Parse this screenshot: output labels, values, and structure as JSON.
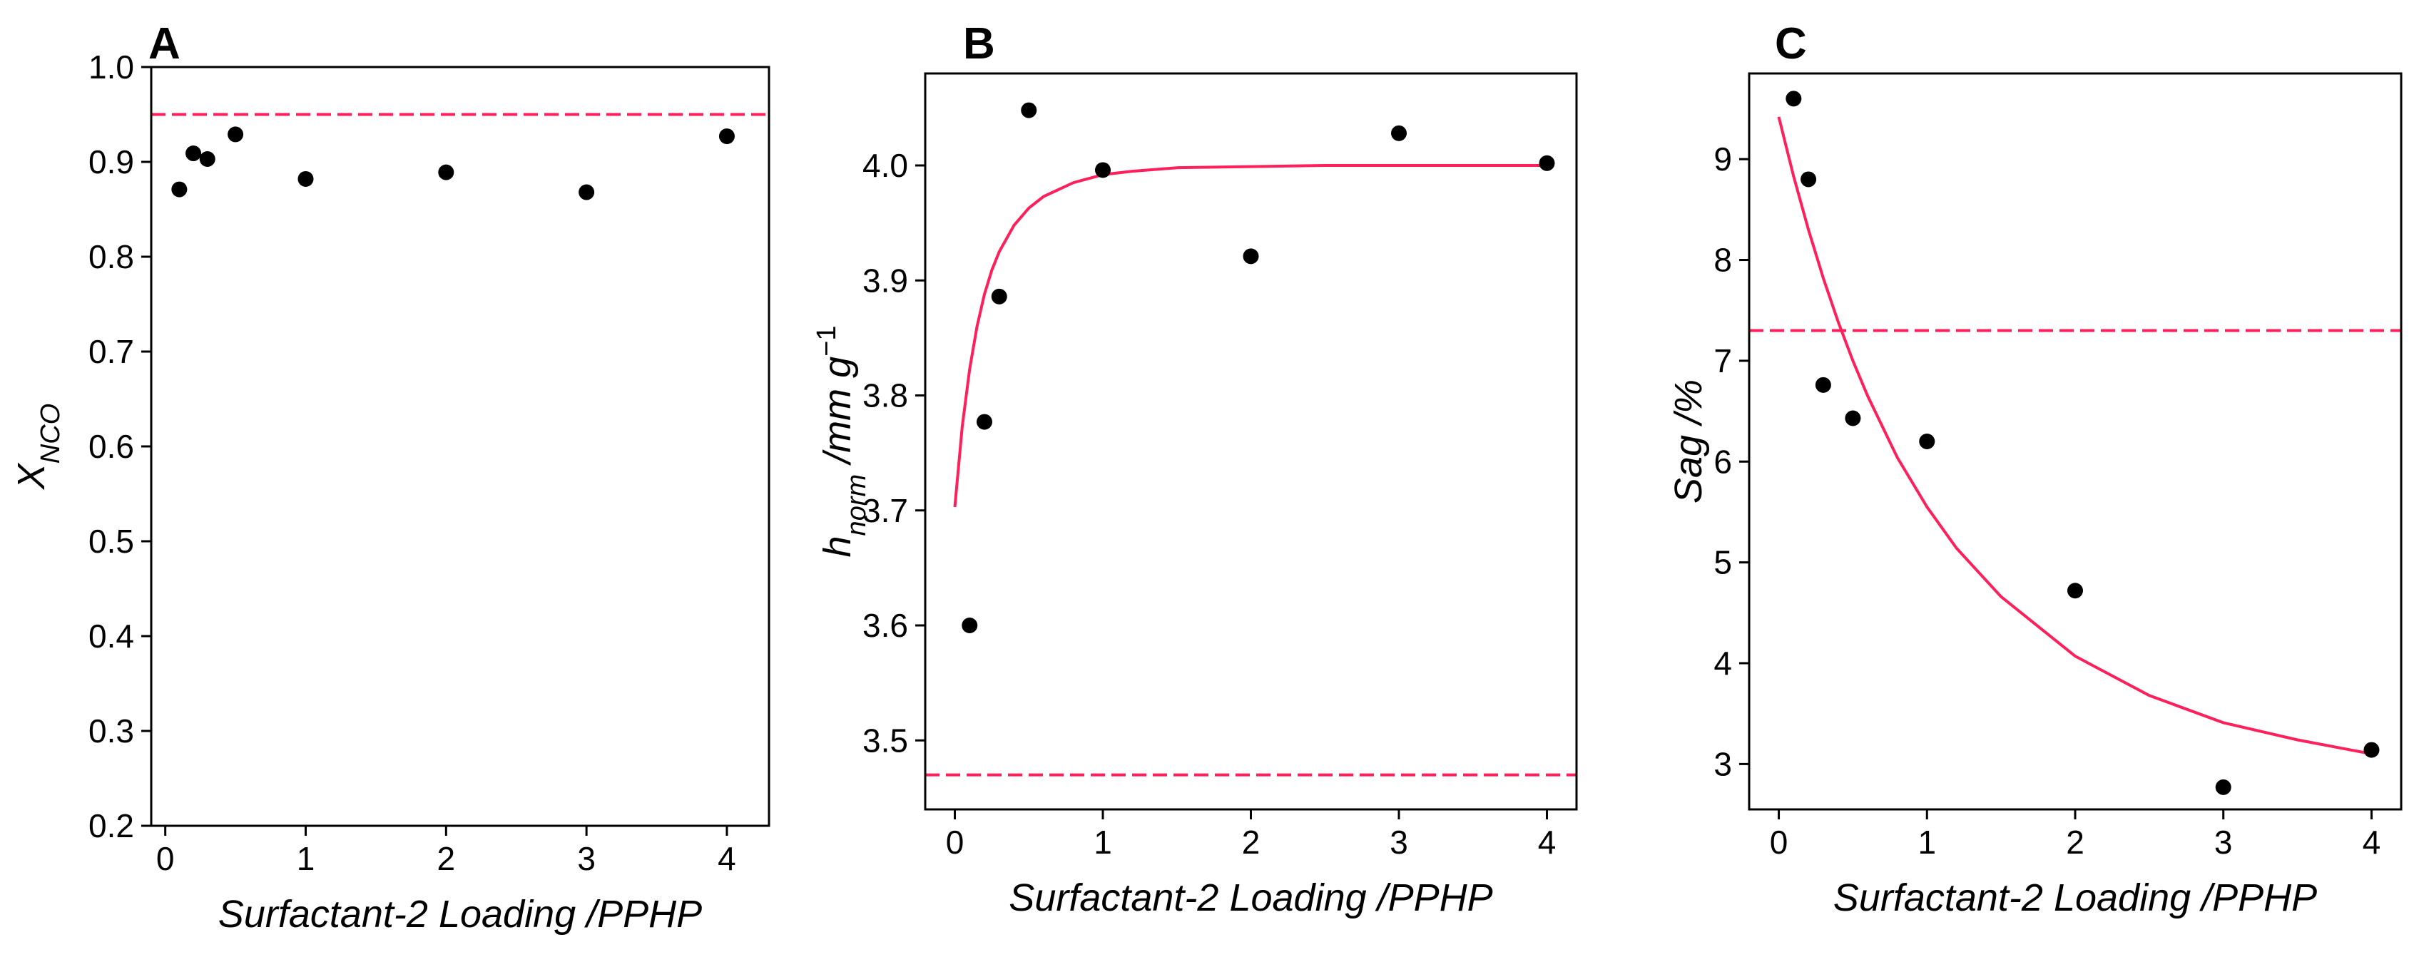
{
  "chart_data": [
    {
      "type": "scatter",
      "panel_label": "A",
      "xlabel": "Surfactant-2 Loading /PPHP",
      "ylabel_main": "X",
      "ylabel_sub": "NCO",
      "xlim": [
        -0.1,
        4.3
      ],
      "ylim": [
        0.2,
        1.0
      ],
      "xticks": [
        0,
        1,
        2,
        3,
        4
      ],
      "yticks": [
        0.2,
        0.3,
        0.4,
        0.5,
        0.6,
        0.7,
        0.8,
        0.9,
        1.0
      ],
      "ytick_labels": [
        "0.2",
        "0.3",
        "0.4",
        "0.5",
        "0.6",
        "0.7",
        "0.8",
        "0.9",
        "1.0"
      ],
      "series": [
        {
          "name": "data",
          "kind": "points",
          "color": "#000000",
          "x": [
            0.1,
            0.2,
            0.3,
            0.5,
            1,
            2,
            3,
            4
          ],
          "y": [
            0.871,
            0.909,
            0.903,
            0.929,
            0.882,
            0.889,
            0.868,
            0.927
          ]
        },
        {
          "name": "reference",
          "kind": "hline",
          "color": "#ff1f5b",
          "y": 0.95
        }
      ]
    },
    {
      "type": "scatter",
      "panel_label": "B",
      "xlabel": "Surfactant-2 Loading /PPHP",
      "ylabel_main": "h",
      "ylabel_sub": "norm",
      "ylabel_rest": " /mm g",
      "ylabel_sup": "−1",
      "xlim": [
        -0.2,
        4.2
      ],
      "ylim": [
        3.44,
        4.08
      ],
      "xticks": [
        0,
        1,
        2,
        3,
        4
      ],
      "yticks": [
        3.5,
        3.6,
        3.7,
        3.8,
        3.9,
        4.0
      ],
      "ytick_labels": [
        "3.5",
        "3.6",
        "3.7",
        "3.8",
        "3.9",
        "4.0"
      ],
      "series": [
        {
          "name": "data",
          "kind": "points",
          "color": "#000000",
          "x": [
            0.1,
            0.2,
            0.3,
            0.5,
            1,
            2,
            3,
            4
          ],
          "y": [
            3.6,
            3.777,
            3.886,
            4.048,
            3.996,
            3.921,
            4.028,
            4.002
          ]
        },
        {
          "name": "fit",
          "kind": "curve",
          "color": "#ff1f5b",
          "x": [
            0,
            0.05,
            0.1,
            0.15,
            0.2,
            0.25,
            0.3,
            0.4,
            0.5,
            0.6,
            0.8,
            1.0,
            1.2,
            1.5,
            2.0,
            2.5,
            3.0,
            3.5,
            4.0
          ],
          "y": [
            3.703,
            3.773,
            3.823,
            3.86,
            3.888,
            3.909,
            3.925,
            3.948,
            3.963,
            3.973,
            3.985,
            3.992,
            3.995,
            3.998,
            3.999,
            4.0,
            4.0,
            4.0,
            4.0
          ]
        },
        {
          "name": "reference",
          "kind": "hline",
          "color": "#ff1f5b",
          "y": 3.47
        }
      ]
    },
    {
      "type": "scatter",
      "panel_label": "C",
      "xlabel": "Surfactant-2 Loading /PPHP",
      "ylabel_main": "Sag",
      "ylabel_rest": " /%",
      "xlim": [
        -0.2,
        4.2
      ],
      "ylim": [
        2.55,
        9.85
      ],
      "xticks": [
        0,
        1,
        2,
        3,
        4
      ],
      "yticks": [
        3,
        4,
        5,
        6,
        7,
        8,
        9
      ],
      "ytick_labels": [
        "3",
        "4",
        "5",
        "6",
        "7",
        "8",
        "9"
      ],
      "series": [
        {
          "name": "data",
          "kind": "points",
          "color": "#000000",
          "x": [
            0.1,
            0.2,
            0.3,
            0.5,
            1,
            2,
            3,
            4
          ],
          "y": [
            9.6,
            8.8,
            6.76,
            6.43,
            6.2,
            4.72,
            2.77,
            3.14
          ]
        },
        {
          "name": "fit",
          "kind": "curve",
          "color": "#ff1f5b",
          "x": [
            0,
            0.1,
            0.2,
            0.3,
            0.4,
            0.5,
            0.6,
            0.8,
            1.0,
            1.2,
            1.5,
            2.0,
            2.5,
            3.0,
            3.5,
            4.0
          ],
          "y": [
            9.42,
            8.83,
            8.3,
            7.82,
            7.39,
            7.0,
            6.65,
            6.04,
            5.55,
            5.14,
            4.66,
            4.07,
            3.68,
            3.41,
            3.24,
            3.1
          ]
        },
        {
          "name": "reference",
          "kind": "hline",
          "color": "#ff1f5b",
          "y": 7.3
        }
      ]
    }
  ]
}
